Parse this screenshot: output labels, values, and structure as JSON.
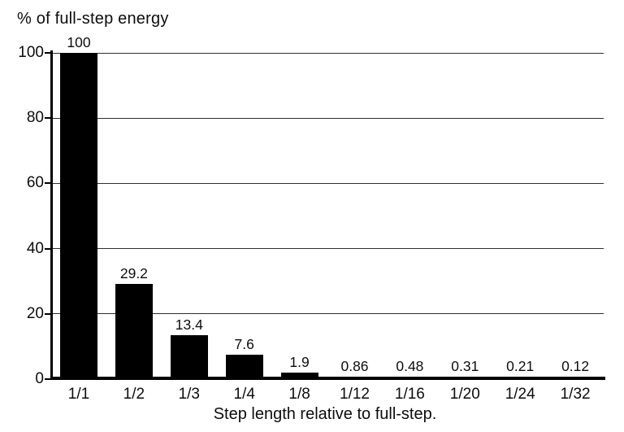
{
  "chart_data": {
    "type": "bar",
    "title": "",
    "ylabel": "% of full-step energy",
    "xlabel": "Step length relative to full-step.",
    "categories": [
      "1/1",
      "1/2",
      "1/3",
      "1/4",
      "1/8",
      "1/12",
      "1/16",
      "1/20",
      "1/24",
      "1/32"
    ],
    "values": [
      100,
      29.2,
      13.4,
      7.6,
      1.9,
      0.86,
      0.48,
      0.31,
      0.21,
      0.12
    ],
    "value_labels": [
      "100",
      "29.2",
      "13.4",
      "7.6",
      "1.9",
      "0.86",
      "0.48",
      "0.31",
      "0.21",
      "0.12"
    ],
    "ylim": [
      0,
      100
    ],
    "yticks": [
      0,
      20,
      40,
      60,
      80,
      100
    ],
    "grid": "horizontal",
    "legend_position": "none",
    "bar_color": "#000000",
    "grid_color": "#2e2e2e",
    "background_color": "#ffffff"
  }
}
